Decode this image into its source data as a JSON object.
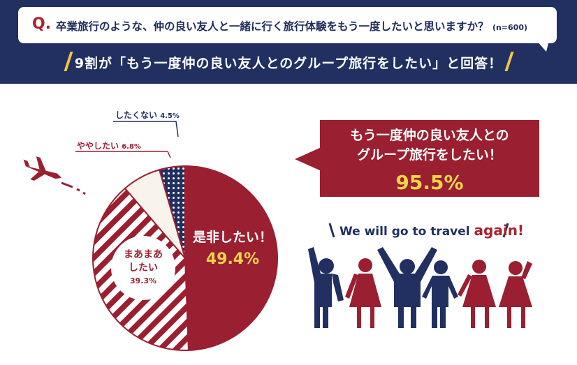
{
  "question": {
    "marker": "Q.",
    "text": "卒業旅行のような、仲の良い友人と一緒に行く旅行体験をもう一度したいと思いますか？",
    "sample": "(n=600)"
  },
  "headline": "9割が「もう一度仲の良い友人とのグループ旅行をしたい」と回答！",
  "callout": {
    "text_line1": "もう一度仲の良い友人との",
    "text_line2": "グループ旅行をしたい！",
    "value": "95.5%"
  },
  "tagline": {
    "text": "We will go to travel ",
    "highlight": "again!"
  },
  "colors": {
    "navy": "#213061",
    "red": "#9a1f30",
    "cream": "#f8f4ec",
    "yellow": "#f3d54a"
  },
  "chart_data": {
    "type": "pie",
    "title": "",
    "unit": "%",
    "slices": [
      {
        "label_line1": "是非したい！",
        "label_line2": "",
        "value": 49.4,
        "display": "49.4%",
        "style": "solid-red"
      },
      {
        "label_line1": "まあまあ",
        "label_line2": "したい",
        "value": 39.3,
        "display": "39.3%",
        "style": "red-stripes"
      },
      {
        "label_line1": "ややしたい",
        "label_line2": "",
        "value": 6.8,
        "display": "6.8%",
        "style": "cream"
      },
      {
        "label_line1": "したくない",
        "label_line2": "",
        "value": 4.5,
        "display": "4.5%",
        "style": "navy-dots"
      }
    ]
  }
}
